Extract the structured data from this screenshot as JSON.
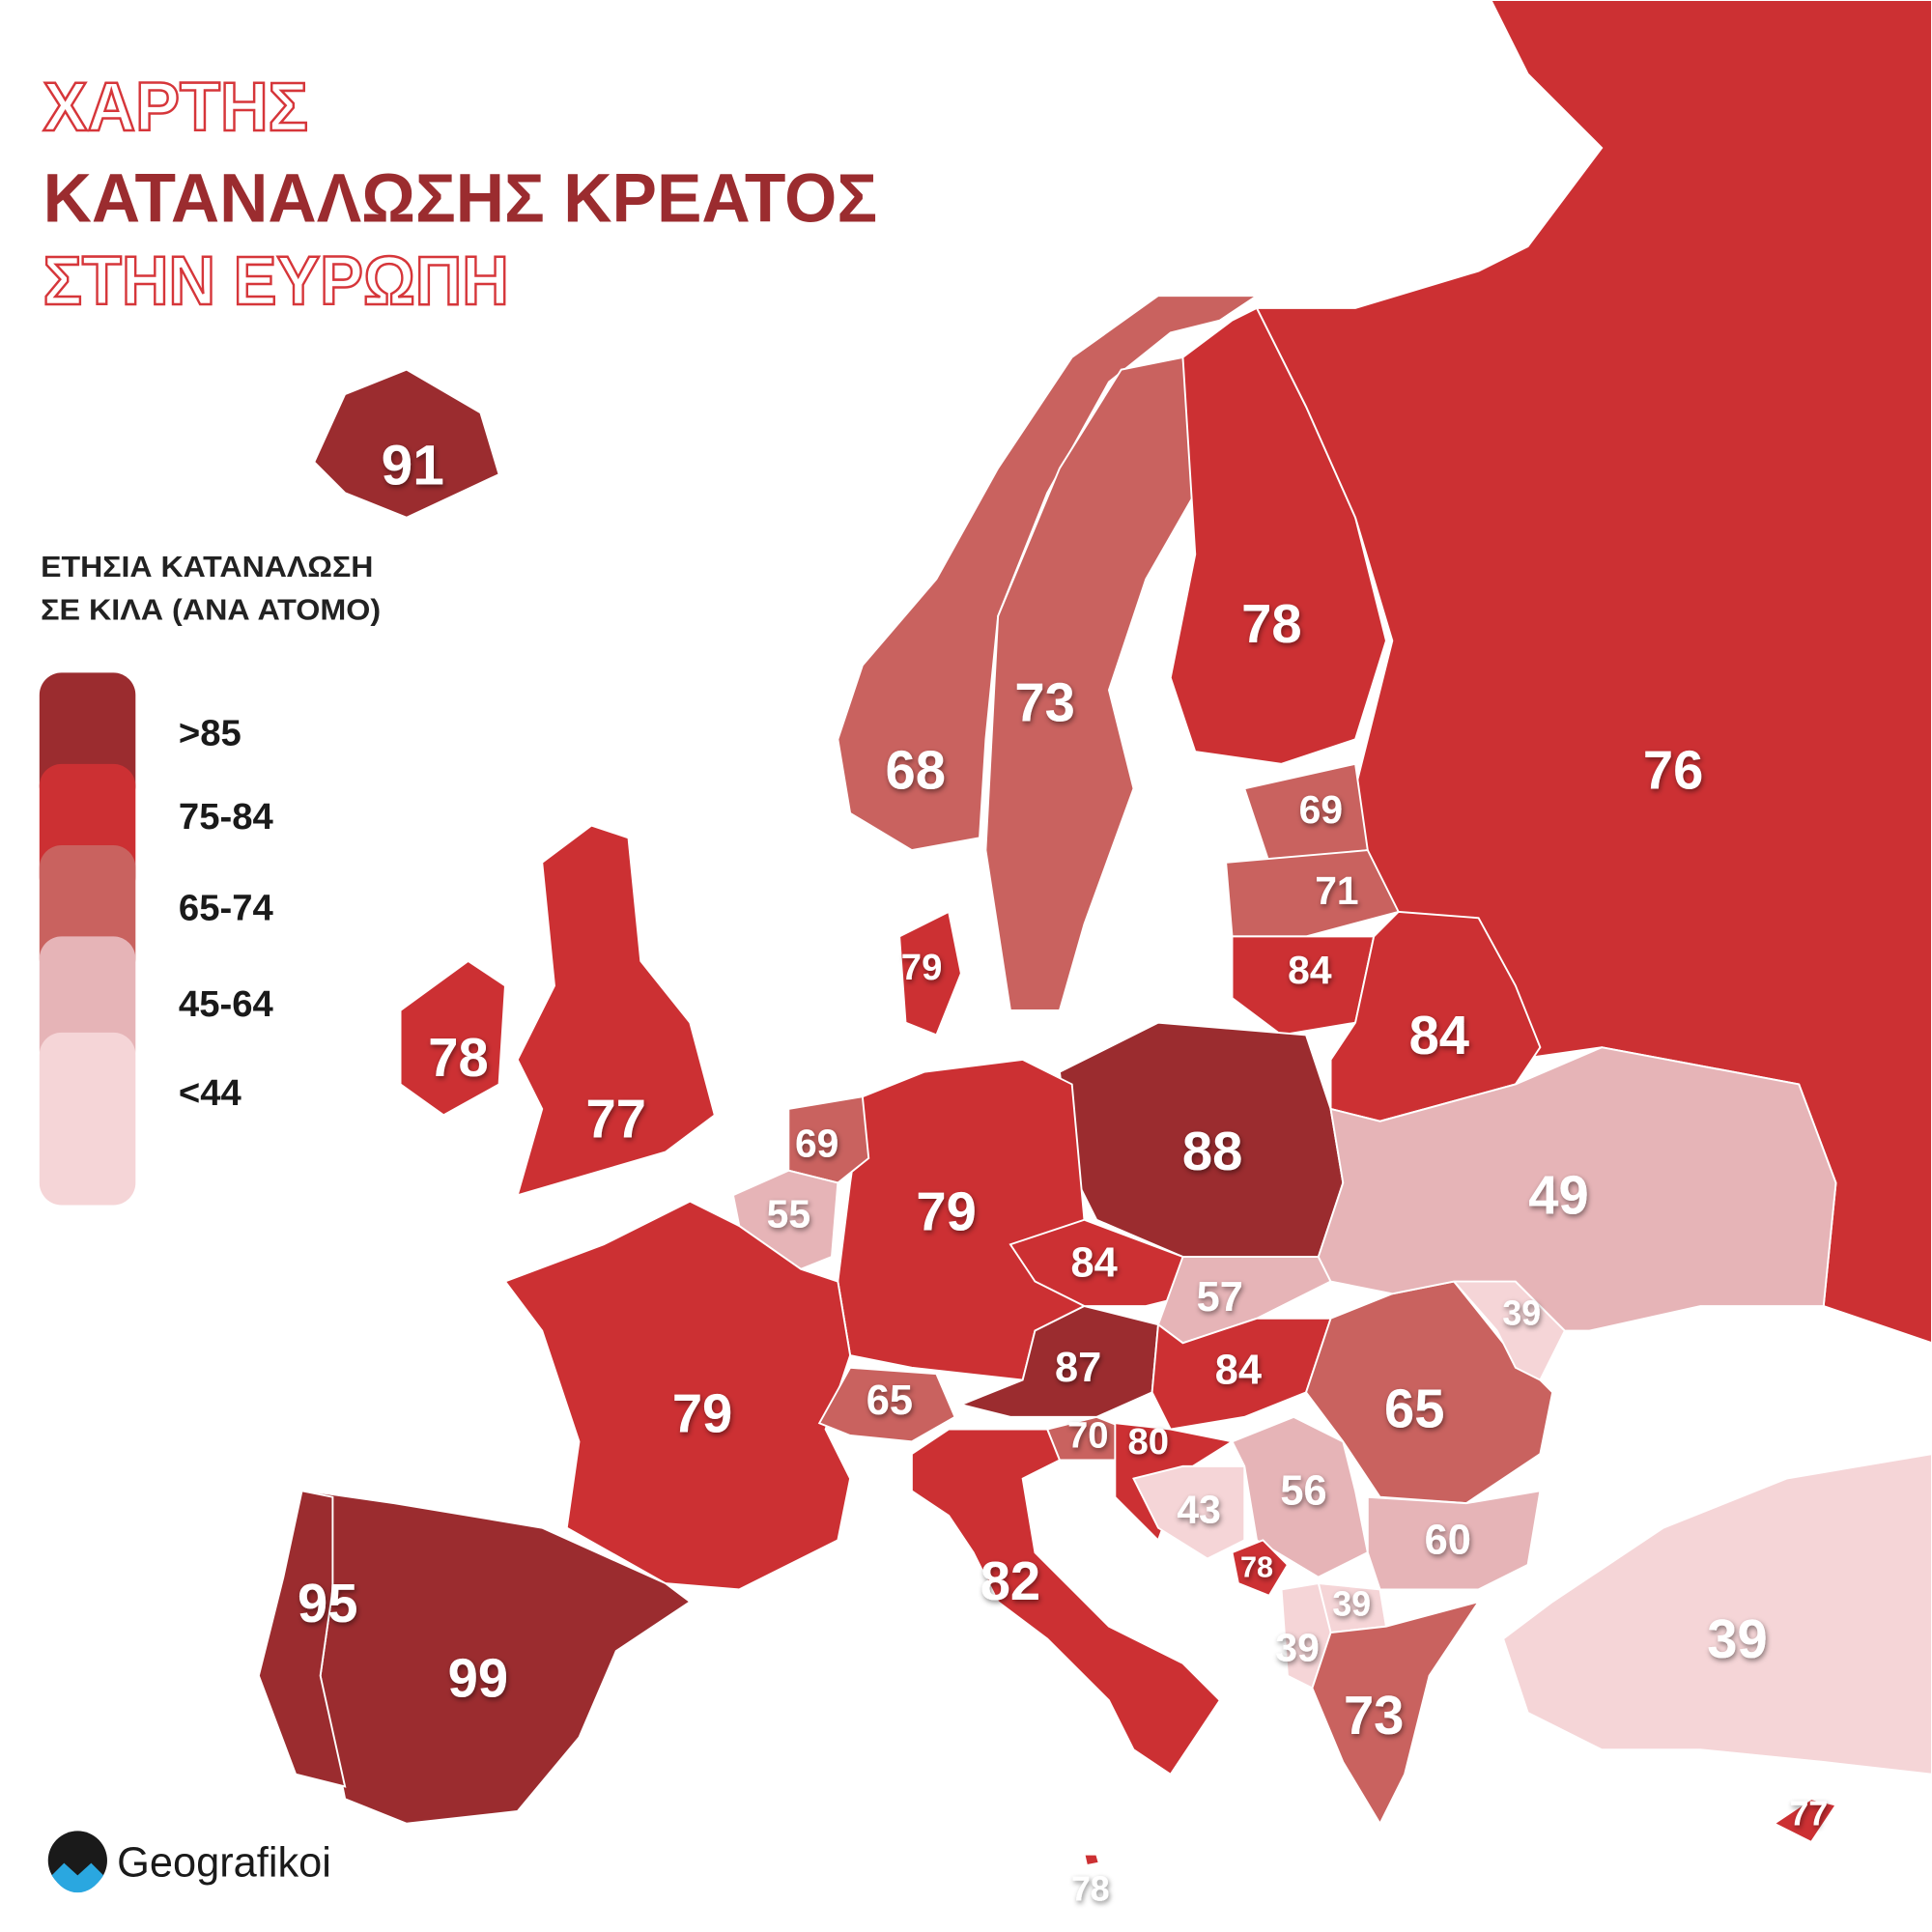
{
  "title": {
    "line1": "ΧΑΡΤΗΣ",
    "line2": "ΚΑΤΑΝΑΛΩΣΗΣ ΚΡΕΑΤΟΣ",
    "line3": "ΣΤΗΝ ΕΥΡΩΠΗ"
  },
  "legend": {
    "title": [
      "ΕΤΗΣΙΑ ΚΑΤΑΝΑΛΩΣΗ",
      "ΣΕ ΚΙΛΑ (ΑΝΑ ΑΤΟΜΟ)"
    ],
    "items": [
      {
        "label": ">85",
        "color": "#9b2c2f"
      },
      {
        "label": "75-84",
        "color": "#cc3033"
      },
      {
        "label": "65-74",
        "color": "#c9625f"
      },
      {
        "label": "45-64",
        "color": "#e6b4b7"
      },
      {
        "label": "<44",
        "color": "#f5d5d7"
      }
    ]
  },
  "regions": [
    {
      "value": 91,
      "color": "#9b2c2f"
    },
    {
      "value": 78,
      "color": "#cc3033"
    },
    {
      "value": 77,
      "color": "#cc3033"
    },
    {
      "value": 68,
      "color": "#c9625f"
    },
    {
      "value": 73,
      "color": "#c9625f"
    },
    {
      "value": 78,
      "color": "#cc3033"
    },
    {
      "value": 76,
      "color": "#cc3033"
    },
    {
      "value": 69,
      "color": "#c9625f"
    },
    {
      "value": 71,
      "color": "#c9625f"
    },
    {
      "value": 84,
      "color": "#cc3033"
    },
    {
      "value": 84,
      "color": "#cc3033"
    },
    {
      "value": 88,
      "color": "#9b2c2f"
    },
    {
      "value": 79,
      "color": "#cc3033"
    },
    {
      "value": 79,
      "color": "#cc3033"
    },
    {
      "value": 69,
      "color": "#c9625f"
    },
    {
      "value": 55,
      "color": "#e6b4b7"
    },
    {
      "value": 79,
      "color": "#cc3033"
    },
    {
      "value": 65,
      "color": "#c9625f"
    },
    {
      "value": 87,
      "color": "#9b2c2f"
    },
    {
      "value": 84,
      "color": "#cc3033"
    },
    {
      "value": 57,
      "color": "#e6b4b7"
    },
    {
      "value": 84,
      "color": "#cc3033"
    },
    {
      "value": 70,
      "color": "#c9625f"
    },
    {
      "value": 80,
      "color": "#cc3033"
    },
    {
      "value": 43,
      "color": "#f5d5d7"
    },
    {
      "value": 56,
      "color": "#e6b4b7"
    },
    {
      "value": 78,
      "color": "#cc3033"
    },
    {
      "value": 65,
      "color": "#c9625f"
    },
    {
      "value": 39,
      "color": "#f5d5d7"
    },
    {
      "value": 49,
      "color": "#e6b4b7"
    },
    {
      "value": 60,
      "color": "#e6b4b7"
    },
    {
      "value": 39,
      "color": "#f5d5d7"
    },
    {
      "value": 39,
      "color": "#f5d5d7"
    },
    {
      "value": 73,
      "color": "#c9625f"
    },
    {
      "value": 39,
      "color": "#f5d5d7"
    },
    {
      "value": 82,
      "color": "#cc3033"
    },
    {
      "value": 99,
      "color": "#9b2c2f"
    },
    {
      "value": 95,
      "color": "#9b2c2f"
    },
    {
      "value": 77,
      "color": "#cc3033"
    },
    {
      "value": 78,
      "color": "#cc3033"
    }
  ],
  "logo": "Geografikoi"
}
